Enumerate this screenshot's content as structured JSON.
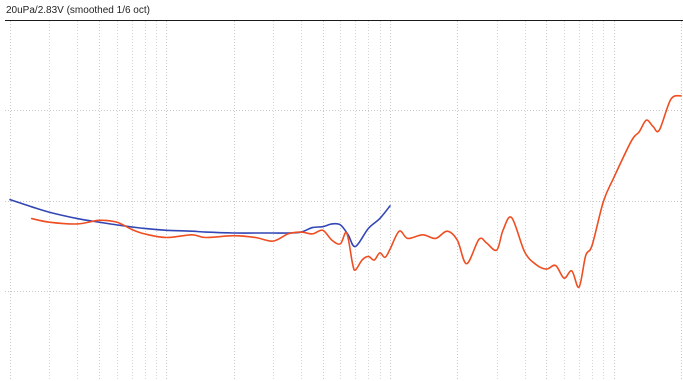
{
  "chart_data": {
    "type": "line",
    "title": "20uPa/2.83V (smoothed 1/6 oct)",
    "xlabel": "",
    "ylabel": "",
    "xscale": "log",
    "xlim": [
      20,
      20000
    ],
    "ylim": [
      60,
      100
    ],
    "grid": true,
    "colors": {
      "series_1": "#3346b5",
      "series_2": "#ee4e22",
      "grid_major": "#c8c8c8",
      "grid_minor": "#d6d6d6"
    },
    "series": [
      {
        "color": "#3346b5",
        "x": [
          20,
          25,
          30,
          40,
          50,
          60,
          80,
          100,
          130,
          150,
          200,
          250,
          300,
          350,
          400,
          450,
          500,
          550,
          600,
          650,
          700,
          800,
          900,
          1000
        ],
        "y": [
          80.1,
          79.3,
          78.7,
          78.0,
          77.6,
          77.3,
          76.9,
          76.7,
          76.6,
          76.5,
          76.4,
          76.4,
          76.4,
          76.4,
          76.5,
          77.0,
          77.1,
          77.4,
          77.3,
          76.2,
          74.9,
          76.9,
          78.0,
          79.4
        ]
      },
      {
        "color": "#ee4e22",
        "x": [
          25,
          30,
          40,
          50,
          60,
          70,
          80,
          100,
          130,
          150,
          200,
          250,
          300,
          350,
          400,
          450,
          500,
          550,
          600,
          640,
          680,
          700,
          750,
          800,
          850,
          900,
          950,
          1000,
          1100,
          1200,
          1400,
          1600,
          1800,
          2000,
          2200,
          2500,
          2700,
          3000,
          3200,
          3500,
          4000,
          4500,
          5000,
          5500,
          6000,
          6500,
          7000,
          7500,
          8000,
          9000,
          10000,
          12000,
          13000,
          14000,
          15000,
          16000,
          18000,
          20000
        ],
        "y": [
          78.0,
          77.6,
          77.4,
          77.8,
          77.6,
          76.8,
          76.3,
          75.9,
          76.2,
          75.9,
          76.1,
          75.9,
          75.5,
          76.3,
          76.5,
          76.3,
          76.7,
          75.6,
          75.2,
          76.4,
          73.0,
          72.3,
          73.4,
          73.8,
          73.4,
          74.2,
          73.7,
          74.6,
          76.6,
          75.8,
          76.2,
          75.8,
          76.6,
          75.6,
          73.0,
          75.7,
          75.3,
          74.5,
          76.7,
          78.1,
          74.3,
          72.9,
          72.4,
          72.8,
          71.4,
          72.2,
          70.4,
          73.9,
          75.0,
          79.9,
          82.5,
          86.6,
          87.6,
          88.9,
          88.2,
          87.8,
          91.2,
          91.6
        ]
      }
    ]
  }
}
